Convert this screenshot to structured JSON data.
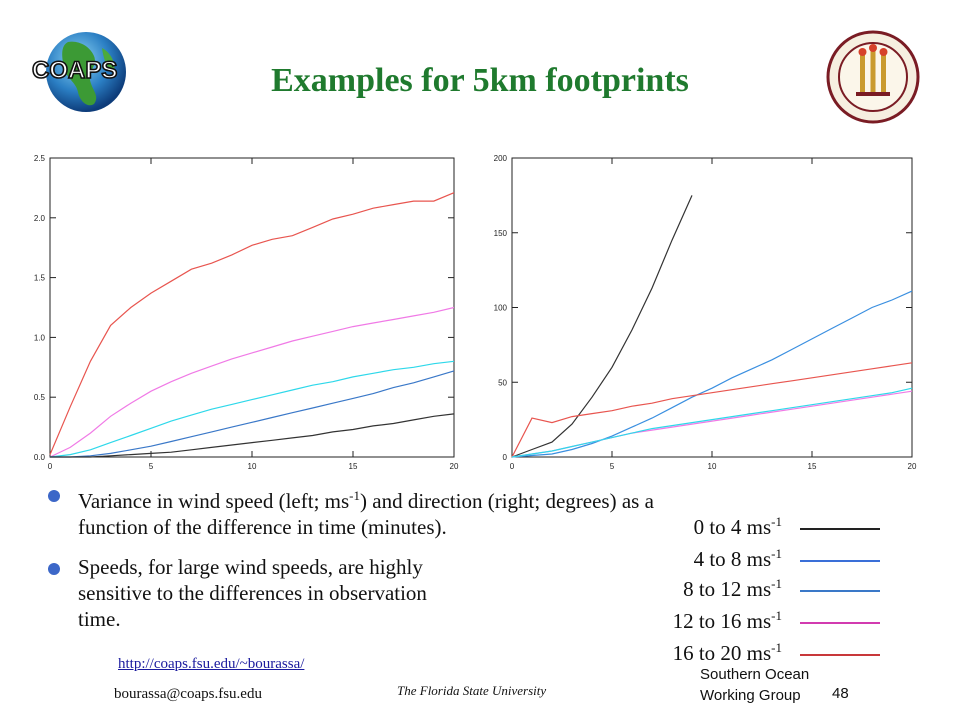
{
  "slide": {
    "title": "Examples for 5km footprints",
    "logo_left_text": "COAPS",
    "seal_icon": "florida-state-university-seal-icon"
  },
  "bullets": [
    {
      "line1_a": "Variance in wind speed (left; ms",
      "line1_sup": "-1",
      "line1_b": ") and direction (right; degrees) as a",
      "line2": "function of the difference in time (minutes)."
    },
    {
      "line1": "Speeds, for large wind speeds, are highly",
      "line2": "sensitive to the differences in observation",
      "line3": "time."
    }
  ],
  "legend": [
    {
      "label": "0 to 4 ms",
      "sup": "-1",
      "color": "#222222"
    },
    {
      "label": "4 to 8 ms",
      "sup": "-1",
      "color": "#3a6fd8"
    },
    {
      "label": "8 to 12 ms",
      "sup": "-1",
      "color": "#3a78c8"
    },
    {
      "label": "12 to 16 ms",
      "sup": "-1",
      "color": "#d23bb0"
    },
    {
      "label": "16 to 20 ms",
      "sup": "-1",
      "color": "#c8383a"
    }
  ],
  "footer": {
    "url": "http://coaps.fsu.edu/~bourassa/",
    "email": "bourassa@coaps.fsu.edu",
    "university": "The Florida State University",
    "group_line1": "Southern Ocean",
    "group_line2": "Working Group",
    "page": "48"
  },
  "chart_data": [
    {
      "type": "line",
      "title": "",
      "xlabel": "",
      "ylabel": "",
      "xlim": [
        0,
        20
      ],
      "ylim": [
        0,
        2.5
      ],
      "xticks": [
        0,
        5,
        10,
        15,
        20
      ],
      "yticks": [
        0.0,
        0.5,
        1.0,
        1.5,
        2.0,
        2.5
      ],
      "ytick_labels": [
        "0.0",
        "0.5",
        "1.0",
        "1.5",
        "2.0",
        "2.5"
      ],
      "grid": false,
      "x": [
        0,
        1,
        2,
        3,
        4,
        5,
        6,
        7,
        8,
        9,
        10,
        11,
        12,
        13,
        14,
        15,
        16,
        17,
        18,
        19,
        20
      ],
      "series": [
        {
          "color": "#e8554f",
          "values": [
            0.02,
            0.42,
            0.8,
            1.1,
            1.25,
            1.37,
            1.47,
            1.57,
            1.62,
            1.69,
            1.77,
            1.82,
            1.85,
            1.92,
            1.99,
            2.03,
            2.08,
            2.11,
            2.14,
            2.14,
            2.21
          ]
        },
        {
          "color": "#f07ae6",
          "values": [
            0.0,
            0.08,
            0.2,
            0.34,
            0.45,
            0.55,
            0.63,
            0.7,
            0.76,
            0.82,
            0.87,
            0.92,
            0.97,
            1.01,
            1.05,
            1.09,
            1.12,
            1.15,
            1.18,
            1.21,
            1.25
          ]
        },
        {
          "color": "#2ed8ea",
          "values": [
            0.0,
            0.02,
            0.06,
            0.12,
            0.18,
            0.24,
            0.3,
            0.35,
            0.4,
            0.44,
            0.48,
            0.52,
            0.56,
            0.6,
            0.63,
            0.67,
            0.7,
            0.73,
            0.75,
            0.78,
            0.8
          ]
        },
        {
          "color": "#3a78c8",
          "values": [
            0.0,
            0.0,
            0.01,
            0.03,
            0.06,
            0.09,
            0.13,
            0.17,
            0.21,
            0.25,
            0.29,
            0.33,
            0.37,
            0.41,
            0.45,
            0.49,
            0.53,
            0.58,
            0.62,
            0.67,
            0.72
          ]
        },
        {
          "color": "#333333",
          "values": [
            0.0,
            0.0,
            0.0,
            0.01,
            0.02,
            0.03,
            0.04,
            0.06,
            0.08,
            0.1,
            0.12,
            0.14,
            0.16,
            0.18,
            0.21,
            0.23,
            0.26,
            0.28,
            0.31,
            0.34,
            0.36
          ]
        }
      ]
    },
    {
      "type": "line",
      "title": "",
      "xlabel": "",
      "ylabel": "",
      "xlim": [
        0,
        20
      ],
      "ylim": [
        0,
        200
      ],
      "xticks": [
        0,
        5,
        10,
        15,
        20
      ],
      "yticks": [
        0,
        50,
        100,
        150,
        200
      ],
      "ytick_labels": [
        "0",
        "50",
        "100",
        "150",
        "200"
      ],
      "grid": false,
      "x": [
        0,
        1,
        2,
        3,
        4,
        5,
        6,
        7,
        8,
        9,
        10,
        11,
        12,
        13,
        14,
        15,
        16,
        17,
        18,
        19,
        20
      ],
      "series": [
        {
          "color": "#333333",
          "values": [
            0,
            5,
            10,
            22,
            40,
            60,
            85,
            113,
            145,
            175,
            null,
            null,
            null,
            null,
            null,
            null,
            null,
            null,
            null,
            null,
            null
          ]
        },
        {
          "color": "#3a8fe0",
          "values": [
            0,
            1,
            2,
            5,
            9,
            14,
            20,
            26,
            33,
            40,
            46,
            53,
            59,
            65,
            72,
            79,
            86,
            93,
            100,
            105,
            111
          ]
        },
        {
          "color": "#e8554f",
          "values": [
            0,
            26,
            23,
            27,
            29,
            31,
            34,
            36,
            39,
            41,
            43,
            45,
            47,
            49,
            51,
            53,
            55,
            57,
            59,
            61,
            63
          ]
        },
        {
          "color": "#f07ae6",
          "values": [
            0,
            2,
            4,
            7,
            10,
            13,
            16,
            18,
            20,
            22,
            24,
            26,
            28,
            30,
            32,
            34,
            36,
            38,
            40,
            42,
            44
          ]
        },
        {
          "color": "#2ed8ea",
          "values": [
            0,
            2,
            4,
            7,
            10,
            13,
            16,
            19,
            21,
            23,
            25,
            27,
            29,
            31,
            33,
            35,
            37,
            39,
            41,
            43,
            46
          ]
        }
      ]
    }
  ]
}
